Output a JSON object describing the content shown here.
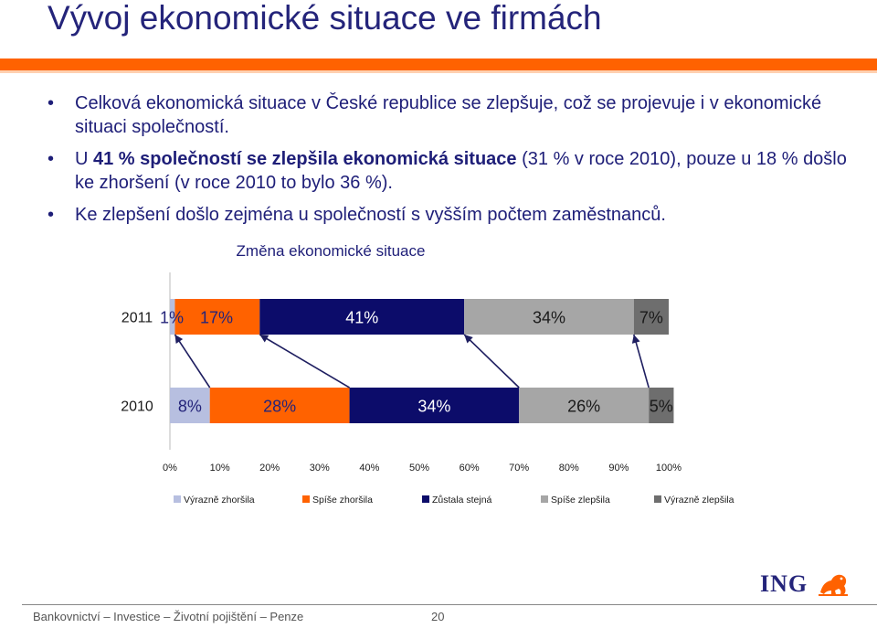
{
  "slide": {
    "title": "Vývoj ekonomické situace ve firmách",
    "bullets": [
      {
        "parts": [
          {
            "text": "Celková ekonomická situace v České republice se zlepšuje, což se projevuje i v ekonomické situaci společností.",
            "bold": false
          }
        ]
      },
      {
        "parts": [
          {
            "text": "U ",
            "bold": false
          },
          {
            "text": "41 % společností se zlepšila ekonomická situace",
            "bold": true
          },
          {
            "text": " (31 % v roce 2010), pouze u  18 % došlo ke zhoršení (v roce 2010 to bylo 36 %).",
            "bold": false
          }
        ]
      },
      {
        "parts": [
          {
            "text": "Ke zlepšení došlo zejména u společností s vyšším počtem zaměstnanců.",
            "bold": false
          }
        ]
      }
    ]
  },
  "chart_data": {
    "type": "bar",
    "orientation": "horizontal",
    "stacked": true,
    "title": "Změna ekonomické situace",
    "categories": [
      "2011",
      "2010"
    ],
    "series": [
      {
        "name": "Výrazně zhoršila",
        "color": "#b7bfe0",
        "values": [
          1,
          8
        ],
        "labels": [
          "1%",
          "8%"
        ]
      },
      {
        "name": "Spíše zhoršila",
        "color": "#ff6200",
        "values": [
          17,
          28
        ],
        "labels": [
          "17%",
          "28%"
        ]
      },
      {
        "name": "Zůstala stejná",
        "color": "#0c0c6a",
        "values": [
          41,
          34
        ],
        "labels": [
          "41%",
          "34%"
        ]
      },
      {
        "name": "Spíše zlepšila",
        "color": "#a6a6a6",
        "values": [
          34,
          26
        ],
        "labels": [
          "34%",
          "26%"
        ]
      },
      {
        "name": "Výrazně zlepšila",
        "color": "#6e6e6e",
        "values": [
          7,
          5
        ],
        "labels": [
          "7%",
          "5%"
        ]
      }
    ],
    "xticks": [
      "0%",
      "10%",
      "20%",
      "30%",
      "40%",
      "50%",
      "60%",
      "70%",
      "80%",
      "90%",
      "100%"
    ],
    "xlim": [
      0,
      100
    ],
    "grid": false,
    "legend": "bottom"
  },
  "footer": {
    "text": "Bankovnictví – Investice – Životní pojištění – Penze",
    "page": "20"
  },
  "logo": {
    "text": "ING",
    "icon": "lion-icon",
    "color": "#ff6200"
  }
}
